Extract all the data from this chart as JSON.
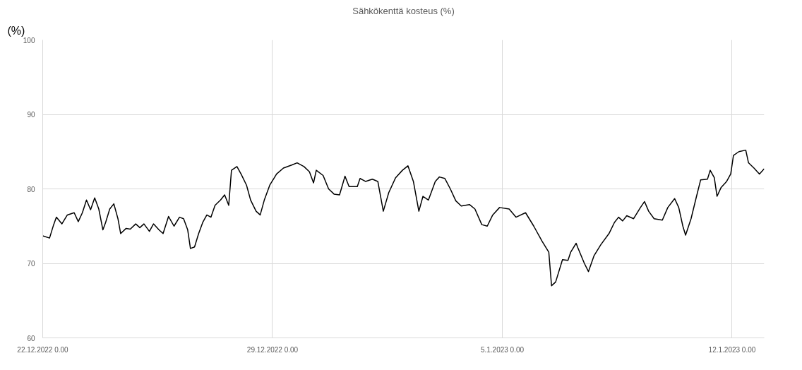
{
  "chart_data": {
    "type": "line",
    "title": "Sähkökenttä kosteus (%)",
    "ylabel": "(%)",
    "x": [
      "2022-12-22T00:00",
      "2022-12-22T05:00",
      "2022-12-22T08:00",
      "2022-12-22T10:00",
      "2022-12-22T14:00",
      "2022-12-22T18:00",
      "2022-12-22T23:00",
      "2022-12-23T02:00",
      "2022-12-23T05:00",
      "2022-12-23T08:00",
      "2022-12-23T11:00",
      "2022-12-23T14:00",
      "2022-12-23T17:00",
      "2022-12-23T20:00",
      "2022-12-23T22:00",
      "2022-12-24T01:00",
      "2022-12-24T04:00",
      "2022-12-24T07:00",
      "2022-12-24T09:00",
      "2022-12-24T13:00",
      "2022-12-24T16:00",
      "2022-12-24T20:00",
      "2022-12-24T23:00",
      "2022-12-25T02:00",
      "2022-12-25T06:00",
      "2022-12-25T09:00",
      "2022-12-25T13:00",
      "2022-12-25T16:00",
      "2022-12-25T20:00",
      "2022-12-26T00:00",
      "2022-12-26T04:00",
      "2022-12-26T07:00",
      "2022-12-26T10:00",
      "2022-12-26T12:00",
      "2022-12-26T15:00",
      "2022-12-26T18:00",
      "2022-12-26T21:00",
      "2022-12-27T00:00",
      "2022-12-27T03:00",
      "2022-12-27T06:00",
      "2022-12-27T10:00",
      "2022-12-27T13:00",
      "2022-12-27T16:00",
      "2022-12-27T18:00",
      "2022-12-27T22:00",
      "2022-12-28T01:00",
      "2022-12-28T05:00",
      "2022-12-28T08:00",
      "2022-12-28T12:00",
      "2022-12-28T15:00",
      "2022-12-28T18:00",
      "2022-12-28T22:00",
      "2022-12-29T03:00",
      "2022-12-29T08:00",
      "2022-12-29T14:00",
      "2022-12-29T18:00",
      "2022-12-29T23:00",
      "2022-12-30T03:00",
      "2022-12-30T06:00",
      "2022-12-30T08:00",
      "2022-12-30T13:00",
      "2022-12-30T17:00",
      "2022-12-30T21:00",
      "2022-12-31T01:00",
      "2022-12-31T05:00",
      "2022-12-31T08:00",
      "2022-12-31T14:00",
      "2022-12-31T16:00",
      "2022-12-31T20:00",
      "2023-01-01T01:00",
      "2023-01-01T05:00",
      "2023-01-01T09:00",
      "2023-01-01T13:00",
      "2023-01-01T18:00",
      "2023-01-01T23:00",
      "2023-01-02T03:00",
      "2023-01-02T07:00",
      "2023-01-02T11:00",
      "2023-01-02T14:00",
      "2023-01-02T18:00",
      "2023-01-02T23:00",
      "2023-01-03T02:00",
      "2023-01-03T06:00",
      "2023-01-03T10:00",
      "2023-01-03T14:00",
      "2023-01-03T18:00",
      "2023-01-04T00:00",
      "2023-01-04T04:00",
      "2023-01-04T09:00",
      "2023-01-04T13:00",
      "2023-01-04T17:00",
      "2023-01-04T22:00",
      "2023-01-05T05:00",
      "2023-01-05T10:00",
      "2023-01-05T17:00",
      "2023-01-05T23:00",
      "2023-01-06T05:00",
      "2023-01-06T10:00",
      "2023-01-06T12:00",
      "2023-01-06T15:00",
      "2023-01-06T20:00",
      "2023-01-07T00:00",
      "2023-01-07T02:00",
      "2023-01-07T06:00",
      "2023-01-07T07:00",
      "2023-01-07T12:00",
      "2023-01-07T15:00",
      "2023-01-07T19:00",
      "2023-01-08T00:00",
      "2023-01-08T06:00",
      "2023-01-08T10:00",
      "2023-01-08T13:00",
      "2023-01-08T16:00",
      "2023-01-08T19:00",
      "2023-01-09T00:00",
      "2023-01-09T05:00",
      "2023-01-09T08:00",
      "2023-01-09T11:00",
      "2023-01-09T15:00",
      "2023-01-09T21:00",
      "2023-01-10T01:00",
      "2023-01-10T06:00",
      "2023-01-10T09:00",
      "2023-01-10T12:00",
      "2023-01-10T14:00",
      "2023-01-10T18:00",
      "2023-01-10T22:00",
      "2023-01-11T01:00",
      "2023-01-11T06:00",
      "2023-01-11T08:00",
      "2023-01-11T11:00",
      "2023-01-11T13:00",
      "2023-01-11T16:00",
      "2023-01-11T20:00",
      "2023-01-11T23:00",
      "2023-01-12T01:00",
      "2023-01-12T05:00",
      "2023-01-12T10:00",
      "2023-01-12T12:00",
      "2023-01-12T16:00",
      "2023-01-12T20:00",
      "2023-01-12T23:30"
    ],
    "series": [
      {
        "color": "#000000",
        "values": [
          73.7,
          73.4,
          75.2,
          76.2,
          75.3,
          76.5,
          76.8,
          75.6,
          76.8,
          78.5,
          77.2,
          78.8,
          77.3,
          74.5,
          75.5,
          77.3,
          78.0,
          76.0,
          74.0,
          74.7,
          74.6,
          75.3,
          74.8,
          75.3,
          74.3,
          75.3,
          74.5,
          74.0,
          76.3,
          75.0,
          76.2,
          76.0,
          74.5,
          72.0,
          72.2,
          74.0,
          75.5,
          76.5,
          76.2,
          77.8,
          78.5,
          79.2,
          77.8,
          82.5,
          83.0,
          82.0,
          80.5,
          78.5,
          77.0,
          76.5,
          78.5,
          80.5,
          82.0,
          82.8,
          83.2,
          83.5,
          83.0,
          82.3,
          80.8,
          82.5,
          81.8,
          80.0,
          79.3,
          79.2,
          81.7,
          80.3,
          80.3,
          81.4,
          81.0,
          81.3,
          81.0,
          77.0,
          79.5,
          81.5,
          82.5,
          83.1,
          81.0,
          77.0,
          79.0,
          78.5,
          81.0,
          81.6,
          81.4,
          80.0,
          78.4,
          77.7,
          77.9,
          77.3,
          75.2,
          75.0,
          76.5,
          77.5,
          77.3,
          76.2,
          76.8,
          75.0,
          73.0,
          71.5,
          67.0,
          67.5,
          70.5,
          70.4,
          71.5,
          72.7,
          72.2,
          70.0,
          68.9,
          71.0,
          72.5,
          74.0,
          75.5,
          76.2,
          75.7,
          76.4,
          76.0,
          77.5,
          78.3,
          77.0,
          76.0,
          75.8,
          77.5,
          78.7,
          77.5,
          75.0,
          73.8,
          76.0,
          79.0,
          81.2,
          81.3,
          82.5,
          81.5,
          79.0,
          80.2,
          81.0,
          82.0,
          84.5,
          85.0,
          85.2,
          83.5,
          82.8,
          82.0,
          82.7
        ]
      }
    ],
    "xlim": [
      "2022-12-22T00:00",
      "2023-01-12T23:30"
    ],
    "xticks": [
      {
        "value": "2022-12-22",
        "label": "22.12.2022 0.00"
      },
      {
        "value": "2022-12-29",
        "label": "29.12.2022 0.00"
      },
      {
        "value": "2023-01-05",
        "label": "5.1.2023 0.00"
      },
      {
        "value": "2023-01-12",
        "label": "12.1.2023 0.00"
      }
    ],
    "ylim": [
      60,
      100
    ],
    "yticks": [
      60,
      70,
      80,
      90,
      100
    ],
    "grid": true,
    "marker": "none",
    "line_style": "solid"
  }
}
